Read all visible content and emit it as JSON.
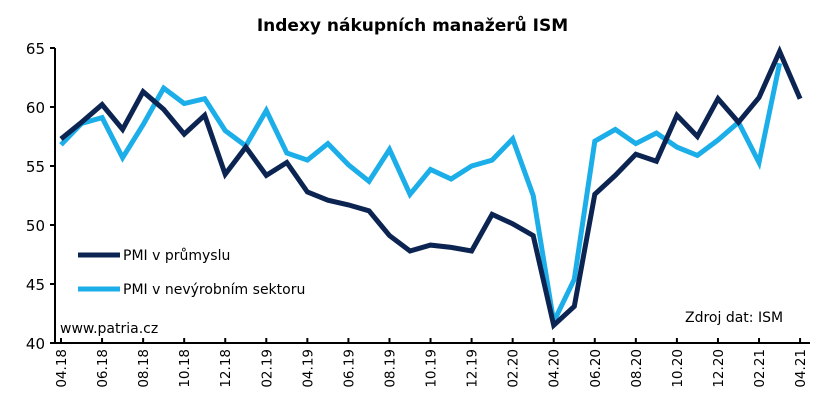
{
  "chart_data": {
    "type": "line",
    "title": "Indexy nákupních manažerů ISM",
    "xlabel": "",
    "ylabel": "",
    "ylim": [
      40,
      65
    ],
    "yticks": [
      40,
      45,
      50,
      55,
      60,
      65
    ],
    "grid": false,
    "legend_position": "lower-left",
    "x": [
      "04.18",
      "05.18",
      "06.18",
      "07.18",
      "08.18",
      "09.18",
      "10.18",
      "11.18",
      "12.18",
      "01.19",
      "02.19",
      "03.19",
      "04.19",
      "05.19",
      "06.19",
      "07.19",
      "08.19",
      "09.19",
      "10.19",
      "11.19",
      "12.19",
      "01.20",
      "02.20",
      "03.20",
      "04.20",
      "05.20",
      "06.20",
      "07.20",
      "08.20",
      "09.20",
      "10.20",
      "11.20",
      "12.20",
      "01.21",
      "02.21",
      "03.21",
      "04.21"
    ],
    "xtick_labels": [
      "04.18",
      "06.18",
      "08.18",
      "10.18",
      "12.18",
      "02.19",
      "04.19",
      "06.19",
      "08.19",
      "10.19",
      "12.19",
      "02.20",
      "04.20",
      "06.20",
      "08.20",
      "10.20",
      "12.20",
      "02.21",
      "04.21"
    ],
    "series": [
      {
        "name": "PMI v průmyslu",
        "color": "#0c2451",
        "values": [
          57.3,
          58.7,
          60.2,
          58.1,
          61.3,
          59.8,
          57.7,
          59.3,
          54.3,
          56.6,
          54.2,
          55.3,
          52.8,
          52.1,
          51.7,
          51.2,
          49.1,
          47.8,
          48.3,
          48.1,
          47.8,
          50.9,
          50.1,
          49.1,
          41.5,
          43.1,
          52.6,
          54.2,
          56.0,
          55.4,
          59.3,
          57.5,
          60.7,
          58.7,
          60.8,
          64.7,
          60.7
        ]
      },
      {
        "name": "PMI v nevýrobním sektoru",
        "color": "#1caee8",
        "values": [
          56.8,
          58.6,
          59.1,
          55.7,
          58.5,
          61.6,
          60.3,
          60.7,
          58.0,
          56.7,
          59.7,
          56.1,
          55.5,
          56.9,
          55.1,
          53.7,
          56.4,
          52.6,
          54.7,
          53.9,
          55.0,
          55.5,
          57.3,
          52.5,
          41.8,
          45.4,
          57.1,
          58.1,
          56.9,
          57.8,
          56.6,
          55.9,
          57.2,
          58.7,
          55.3,
          63.7,
          null
        ]
      }
    ],
    "annotations": [
      "www.patria.cz",
      "Zdroj dat: ISM"
    ]
  },
  "labels": {
    "title": "Indexy nákupních manažerů ISM",
    "source_note": "Zdroj dat: ISM",
    "website": "www.patria.cz",
    "legend": [
      "PMI v průmyslu",
      "PMI v nevýrobním sektoru"
    ]
  }
}
